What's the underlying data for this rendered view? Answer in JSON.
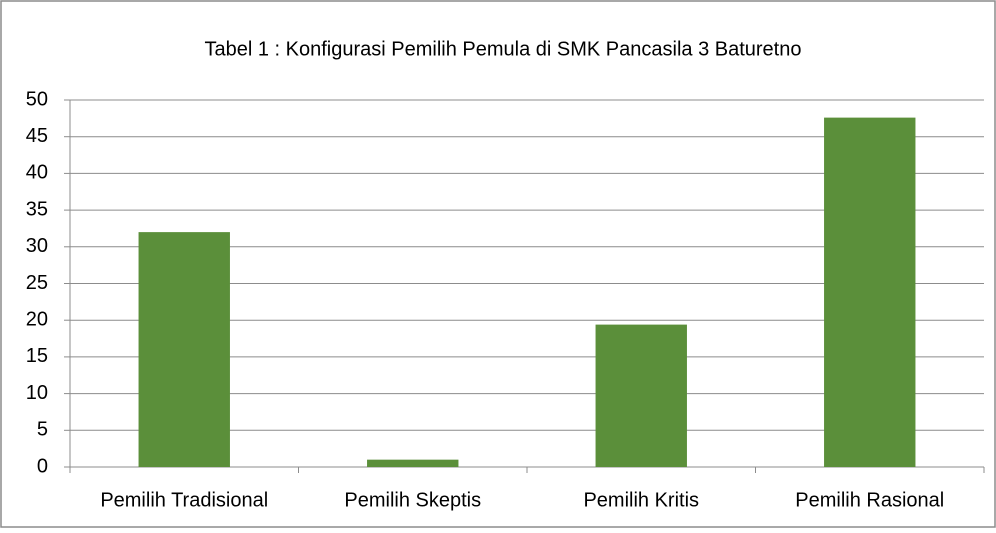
{
  "chart_data": {
    "type": "bar",
    "title": "Tabel 1 : Konfigurasi Pemilih Pemula di SMK Pancasila 3 Baturetno",
    "categories": [
      "Pemilih Tradisional",
      "Pemilih Skeptis",
      "Pemilih Kritis",
      "Pemilih Rasional"
    ],
    "values": [
      32,
      1,
      19.4,
      47.6
    ],
    "color": "#5b8f3a",
    "ylim": [
      0,
      50
    ],
    "yticks": [
      0,
      5,
      10,
      15,
      20,
      25,
      30,
      35,
      40,
      45,
      50
    ],
    "grid": true
  }
}
